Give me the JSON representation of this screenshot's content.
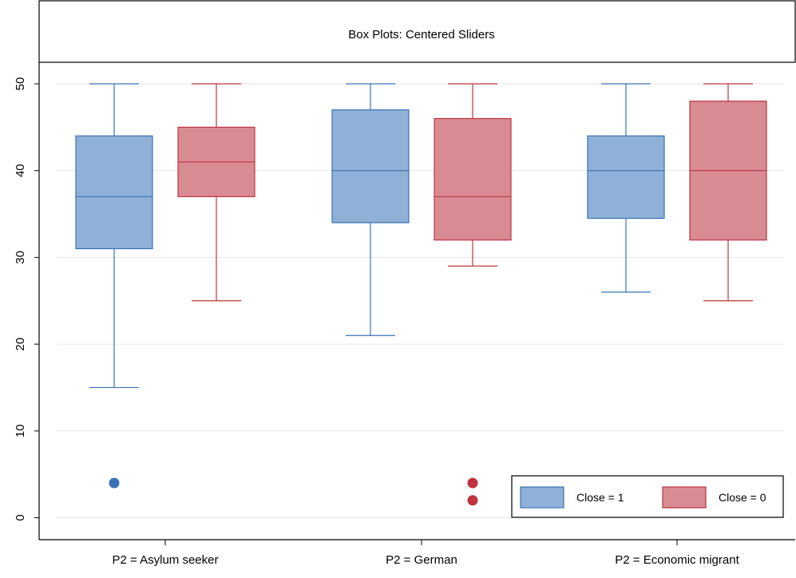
{
  "chart_data": {
    "type": "box",
    "title": "Box Plots: Centered Sliders",
    "xlabel": "",
    "ylabel": "",
    "ylim": [
      -1,
      52.5
    ],
    "yticks": [
      0,
      10,
      20,
      30,
      40,
      50
    ],
    "grid": true,
    "legend_position": "bottom-right",
    "categories": [
      "P2 = Asylum seeker",
      "P2 = German",
      "P2 = Economic migrant"
    ],
    "series": [
      {
        "name": "Close = 1",
        "fill": "#8fb1d7",
        "stroke": "#3a72b5",
        "boxes": [
          {
            "whisker_low": 15,
            "q1": 31,
            "median": 37,
            "q3": 44,
            "whisker_high": 50,
            "outliers": [
              4
            ]
          },
          {
            "whisker_low": 21,
            "q1": 34,
            "median": 40,
            "q3": 47,
            "whisker_high": 50,
            "outliers": []
          },
          {
            "whisker_low": 26,
            "q1": 34.5,
            "median": 40,
            "q3": 44,
            "whisker_high": 50,
            "outliers": []
          }
        ]
      },
      {
        "name": "Close = 0",
        "fill": "#d98b94",
        "stroke": "#c0323f",
        "boxes": [
          {
            "whisker_low": 25,
            "q1": 37,
            "median": 41,
            "q3": 45,
            "whisker_high": 50,
            "outliers": []
          },
          {
            "whisker_low": 29,
            "q1": 32,
            "median": 37,
            "q3": 46,
            "whisker_high": 50,
            "outliers": [
              4,
              2
            ]
          },
          {
            "whisker_low": 25,
            "q1": 32,
            "median": 40,
            "q3": 48,
            "whisker_high": 50,
            "outliers": []
          }
        ]
      }
    ]
  }
}
